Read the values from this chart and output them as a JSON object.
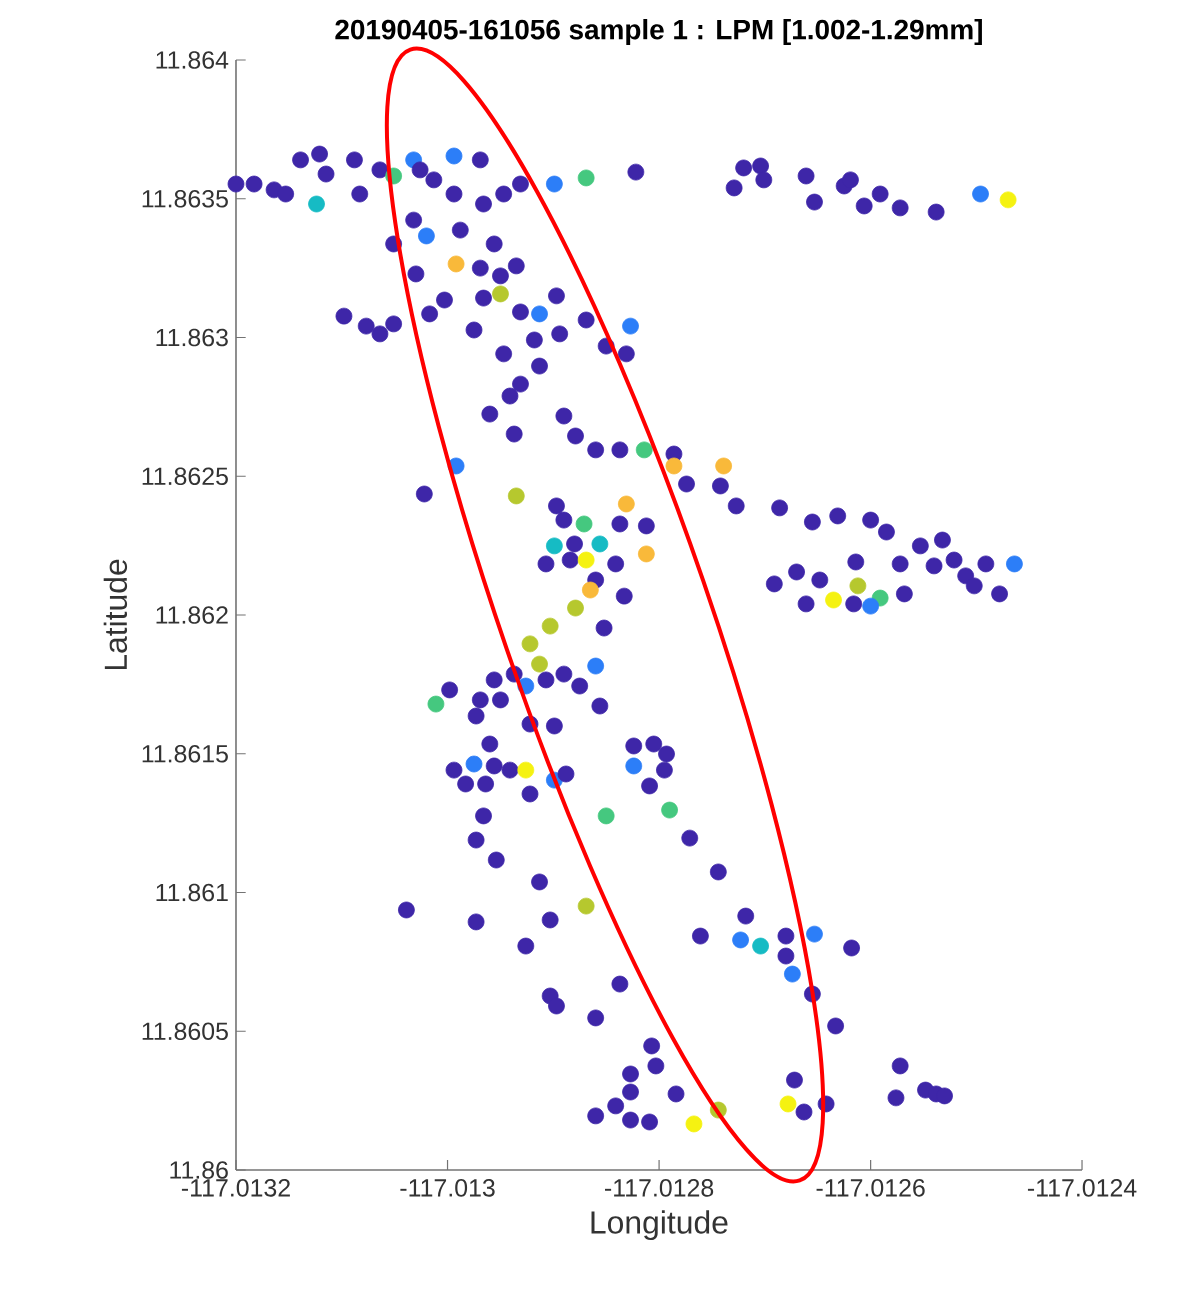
{
  "chart_data": {
    "type": "scatter",
    "title": "20190405-161056 sample 1 : LPM [1.002-1.29mm]",
    "xlabel": "Longitude",
    "ylabel": "Latitude",
    "xlim": [
      -117.0132,
      -117.0124
    ],
    "ylim": [
      11.86,
      11.864
    ],
    "xticks": [
      -117.0132,
      -117.013,
      -117.0128,
      -117.0126,
      -117.0124
    ],
    "yticks": [
      11.86,
      11.8605,
      11.861,
      11.8615,
      11.862,
      11.8625,
      11.863,
      11.8635,
      11.864
    ],
    "marker": "circle",
    "series": [
      {
        "x": [
          -117.0132,
          -117.013183,
          -117.013164,
          -117.013153,
          -117.013139,
          -117.013121,
          -117.013115,
          -117.013088,
          -117.013083,
          -117.013064,
          -117.013051,
          -117.013032,
          -117.013026,
          -117.013013,
          -117.012994,
          -117.012994,
          -117.012969,
          -117.012966,
          -117.012947,
          -117.012931,
          -117.012899,
          -117.012869,
          -117.012822,
          -117.013124,
          -117.013032,
          -117.013051,
          -117.01302,
          -117.012988,
          -117.012956,
          -117.012992,
          -117.01303,
          -117.012969,
          -117.01295,
          -117.012935,
          -117.01295,
          -117.012966,
          -117.013003,
          -117.013017,
          -117.012975,
          -117.013098,
          -117.013077,
          -117.013064,
          -117.013051,
          -117.012931,
          -117.012897,
          -117.012913,
          -117.012894,
          -117.012869,
          -117.01285,
          -117.012827,
          -117.012918,
          -117.012947,
          -117.012913,
          -117.012931,
          -117.012941,
          -117.01296,
          -117.01289,
          -117.012937,
          -117.012879,
          -117.01286,
          -117.012837,
          -117.012814,
          -117.012729,
          -117.01272,
          -117.012704,
          -117.012701,
          -117.012661,
          -117.012653,
          -117.012625,
          -117.012619,
          -117.012606,
          -117.012591,
          -117.012572,
          -117.012538,
          -117.012496,
          -117.01247,
          -117.012831,
          -117.012992,
          -117.013022,
          -117.012935,
          -117.012897,
          -117.01289,
          -117.012871,
          -117.012831,
          -117.012837,
          -117.012812,
          -117.012899,
          -117.01288,
          -117.012856,
          -117.012907,
          -117.012884,
          -117.012869,
          -117.012841,
          -117.012812,
          -117.01286,
          -117.012865,
          -117.012833,
          -117.012879,
          -117.012903,
          -117.012852,
          -117.012922,
          -117.012913,
          -117.01286,
          -117.012956,
          -117.012937,
          -117.012926,
          -117.012907,
          -117.01289,
          -117.012875,
          -117.012998,
          -117.013011,
          -117.012969,
          -117.01295,
          -117.012973,
          -117.012922,
          -117.012899,
          -117.012856,
          -117.01296,
          -117.012994,
          -117.012975,
          -117.012956,
          -117.012941,
          -117.012926,
          -117.012983,
          -117.012964,
          -117.012922,
          -117.012899,
          -117.012888,
          -117.012824,
          -117.012805,
          -117.012809,
          -117.012786,
          -117.012786,
          -117.012774,
          -117.012739,
          -117.012742,
          -117.012727,
          -117.012686,
          -117.012655,
          -117.012631,
          -117.0126,
          -117.012585,
          -117.012553,
          -117.012532,
          -117.012572,
          -117.012614,
          -117.012691,
          -117.01267,
          -117.012648,
          -117.012661,
          -117.012635,
          -117.012616,
          -117.012612,
          -117.012591,
          -117.0126,
          -117.012568,
          -117.01254,
          -117.012521,
          -117.01251,
          -117.012491,
          -117.012478,
          -117.012464,
          -117.012502,
          -117.012793,
          -117.012795,
          -117.01285,
          -117.012824,
          -117.012966,
          -117.012973,
          -117.012954,
          -117.012913,
          -117.012869,
          -117.013039,
          -117.012973,
          -117.012903,
          -117.012926,
          -117.012837,
          -117.012903,
          -117.012897,
          -117.01286,
          -117.012807,
          -117.012827,
          -117.012827,
          -117.01286,
          -117.012841,
          -117.012827,
          -117.012809,
          -117.01279,
          -117.012771,
          -117.012744,
          -117.012718,
          -117.012761,
          -117.012723,
          -117.012704,
          -117.01268,
          -117.01268,
          -117.012653,
          -117.012618,
          -117.012674,
          -117.012655,
          -117.012633,
          -117.012803,
          -117.012784,
          -117.012767,
          -117.012744,
          -117.012672,
          -117.012678,
          -117.012663,
          -117.012642,
          -117.012572,
          -117.012576,
          -117.012548,
          -117.012538,
          -117.01253
        ],
        "values": [
          11.863553,
          11.863553,
          11.863532,
          11.863517,
          11.86364,
          11.863661,
          11.863589,
          11.86364,
          11.863517,
          11.863604,
          11.863582,
          11.86364,
          11.863604,
          11.863568,
          11.863654,
          11.863517,
          11.86364,
          11.863481,
          11.863517,
          11.863553,
          11.863553,
          11.863575,
          11.863596,
          11.863481,
          11.863423,
          11.863337,
          11.863366,
          11.863387,
          11.863337,
          11.863265,
          11.863229,
          11.86325,
          11.863222,
          11.863258,
          11.863157,
          11.863142,
          11.863135,
          11.863085,
          11.863027,
          11.863077,
          11.863041,
          11.863013,
          11.863049,
          11.863092,
          11.86315,
          11.863085,
          11.863013,
          11.863063,
          11.862969,
          11.863041,
          11.862991,
          11.862941,
          11.862897,
          11.862832,
          11.862789,
          11.862724,
          11.862717,
          11.862652,
          11.862645,
          11.862595,
          11.862595,
          11.862595,
          11.863539,
          11.863611,
          11.863618,
          11.863568,
          11.863582,
          11.863488,
          11.863546,
          11.863568,
          11.863474,
          11.863517,
          11.863467,
          11.863452,
          11.863517,
          11.863496,
          11.862941,
          11.862537,
          11.862436,
          11.862429,
          11.862393,
          11.862342,
          11.862328,
          11.8624,
          11.862328,
          11.862321,
          11.862249,
          11.862256,
          11.862256,
          11.862184,
          11.862198,
          11.862198,
          11.862184,
          11.86222,
          11.862126,
          11.86209,
          11.862068,
          11.862025,
          11.86196,
          11.861953,
          11.861896,
          11.861823,
          11.861816,
          11.861766,
          11.861787,
          11.861744,
          11.861766,
          11.861787,
          11.861744,
          11.86173,
          11.861679,
          11.861694,
          11.861694,
          11.861636,
          11.861607,
          11.8616,
          11.861672,
          11.861535,
          11.861441,
          11.861463,
          11.861456,
          11.861441,
          11.861441,
          11.861391,
          11.861391,
          11.861355,
          11.861405,
          11.861427,
          11.861528,
          11.861535,
          11.861384,
          11.86258,
          11.862537,
          11.862472,
          11.862537,
          11.862465,
          11.862393,
          11.862386,
          11.862335,
          11.862357,
          11.862342,
          11.862299,
          11.862249,
          11.86227,
          11.862184,
          11.862191,
          11.862112,
          11.862155,
          11.862126,
          11.86204,
          11.862054,
          11.86204,
          11.862105,
          11.862061,
          11.862032,
          11.862076,
          11.862177,
          11.862198,
          11.862141,
          11.862184,
          11.862076,
          11.862184,
          11.862105,
          11.861499,
          11.861441,
          11.861276,
          11.861456,
          11.861276,
          11.861189,
          11.861117,
          11.861038,
          11.860951,
          11.860937,
          11.860894,
          11.860901,
          11.860807,
          11.86067,
          11.860627,
          11.860591,
          11.860548,
          11.860447,
          11.860346,
          11.860281,
          11.860195,
          11.860231,
          11.86018,
          11.860173,
          11.861297,
          11.861196,
          11.861074,
          11.860915,
          11.860843,
          11.860829,
          11.860807,
          11.860843,
          11.860771,
          11.86085,
          11.8608,
          11.860706,
          11.860634,
          11.860519,
          11.860375,
          11.860274,
          11.860166,
          11.860216,
          11.860324,
          11.860238,
          11.860209,
          11.860238,
          11.860375,
          11.86026,
          11.860288,
          11.860274,
          11.860267
        ],
        "colors": [
          "#3e26a8",
          "#3e26a8",
          "#3e26a8",
          "#3e26a8",
          "#3e26a8",
          "#3e26a8",
          "#3e26a8",
          "#3e26a8",
          "#3e26a8",
          "#3e26a8",
          "#45c87f",
          "#2c7ef8",
          "#3e26a8",
          "#3e26a8",
          "#2c7ef8",
          "#3e26a8",
          "#3e26a8",
          "#3e26a8",
          "#3e26a8",
          "#3e26a8",
          "#2c7ef8",
          "#45c87f",
          "#3e26a8",
          "#16bbc4",
          "#3e26a8",
          "#3e26a8",
          "#2c7ef8",
          "#3e26a8",
          "#3e26a8",
          "#f9b93a",
          "#3e26a8",
          "#3e26a8",
          "#3e26a8",
          "#3e26a8",
          "#b6c82e",
          "#3e26a8",
          "#3e26a8",
          "#3e26a8",
          "#3e26a8",
          "#3e26a8",
          "#3e26a8",
          "#3e26a8",
          "#3e26a8",
          "#3e26a8",
          "#3e26a8",
          "#2c7ef8",
          "#3e26a8",
          "#3e26a8",
          "#3e26a8",
          "#2c7ef8",
          "#3e26a8",
          "#3e26a8",
          "#3e26a8",
          "#3e26a8",
          "#3e26a8",
          "#3e26a8",
          "#3e26a8",
          "#3e26a8",
          "#3e26a8",
          "#3e26a8",
          "#3e26a8",
          "#45c87f",
          "#3e26a8",
          "#3e26a8",
          "#3e26a8",
          "#3e26a8",
          "#3e26a8",
          "#3e26a8",
          "#3e26a8",
          "#3e26a8",
          "#3e26a8",
          "#3e26a8",
          "#3e26a8",
          "#3e26a8",
          "#2c7ef8",
          "#f5f211",
          "#3e26a8",
          "#2c7ef8",
          "#3e26a8",
          "#b6c82e",
          "#3e26a8",
          "#3e26a8",
          "#45c87f",
          "#f9b93a",
          "#3e26a8",
          "#3e26a8",
          "#16bbc4",
          "#3e26a8",
          "#16bbc4",
          "#3e26a8",
          "#3e26a8",
          "#f5f211",
          "#3e26a8",
          "#f9b93a",
          "#3e26a8",
          "#f9b93a",
          "#3e26a8",
          "#b6c82e",
          "#b6c82e",
          "#3e26a8",
          "#b6c82e",
          "#b6c82e",
          "#2c7ef8",
          "#3e26a8",
          "#3e26a8",
          "#2c7ef8",
          "#3e26a8",
          "#3e26a8",
          "#3e26a8",
          "#3e26a8",
          "#45c87f",
          "#3e26a8",
          "#3e26a8",
          "#3e26a8",
          "#3e26a8",
          "#3e26a8",
          "#3e26a8",
          "#3e26a8",
          "#3e26a8",
          "#2c7ef8",
          "#3e26a8",
          "#3e26a8",
          "#f5f211",
          "#3e26a8",
          "#3e26a8",
          "#3e26a8",
          "#2c7ef8",
          "#3e26a8",
          "#3e26a8",
          "#3e26a8",
          "#3e26a8",
          "#3e26a8",
          "#f9b93a",
          "#3e26a8",
          "#f9b93a",
          "#3e26a8",
          "#3e26a8",
          "#3e26a8",
          "#3e26a8",
          "#3e26a8",
          "#3e26a8",
          "#3e26a8",
          "#3e26a8",
          "#3e26a8",
          "#3e26a8",
          "#3e26a8",
          "#3e26a8",
          "#3e26a8",
          "#3e26a8",
          "#3e26a8",
          "#f5f211",
          "#3e26a8",
          "#b6c82e",
          "#45c87f",
          "#2c7ef8",
          "#3e26a8",
          "#3e26a8",
          "#3e26a8",
          "#3e26a8",
          "#3e26a8",
          "#3e26a8",
          "#2c7ef8",
          "#3e26a8",
          "#3e26a8",
          "#3e26a8",
          "#45c87f",
          "#2c7ef8",
          "#3e26a8",
          "#3e26a8",
          "#3e26a8",
          "#3e26a8",
          "#b6c82e",
          "#3e26a8",
          "#3e26a8",
          "#3e26a8",
          "#3e26a8",
          "#3e26a8",
          "#3e26a8",
          "#3e26a8",
          "#3e26a8",
          "#3e26a8",
          "#3e26a8",
          "#3e26a8",
          "#3e26a8",
          "#3e26a8",
          "#3e26a8",
          "#3e26a8",
          "#45c87f",
          "#3e26a8",
          "#3e26a8",
          "#3e26a8",
          "#3e26a8",
          "#2c7ef8",
          "#16bbc4",
          "#3e26a8",
          "#3e26a8",
          "#2c7ef8",
          "#3e26a8",
          "#2c7ef8",
          "#3e26a8",
          "#3e26a8",
          "#3e26a8",
          "#3e26a8",
          "#f5f211",
          "#b6c82e",
          "#3e26a8",
          "#f5f211",
          "#3e26a8",
          "#3e26a8",
          "#3e26a8",
          "#3e26a8",
          "#3e26a8",
          "#3e26a8",
          "#3e26a8"
        ]
      }
    ]
  }
}
